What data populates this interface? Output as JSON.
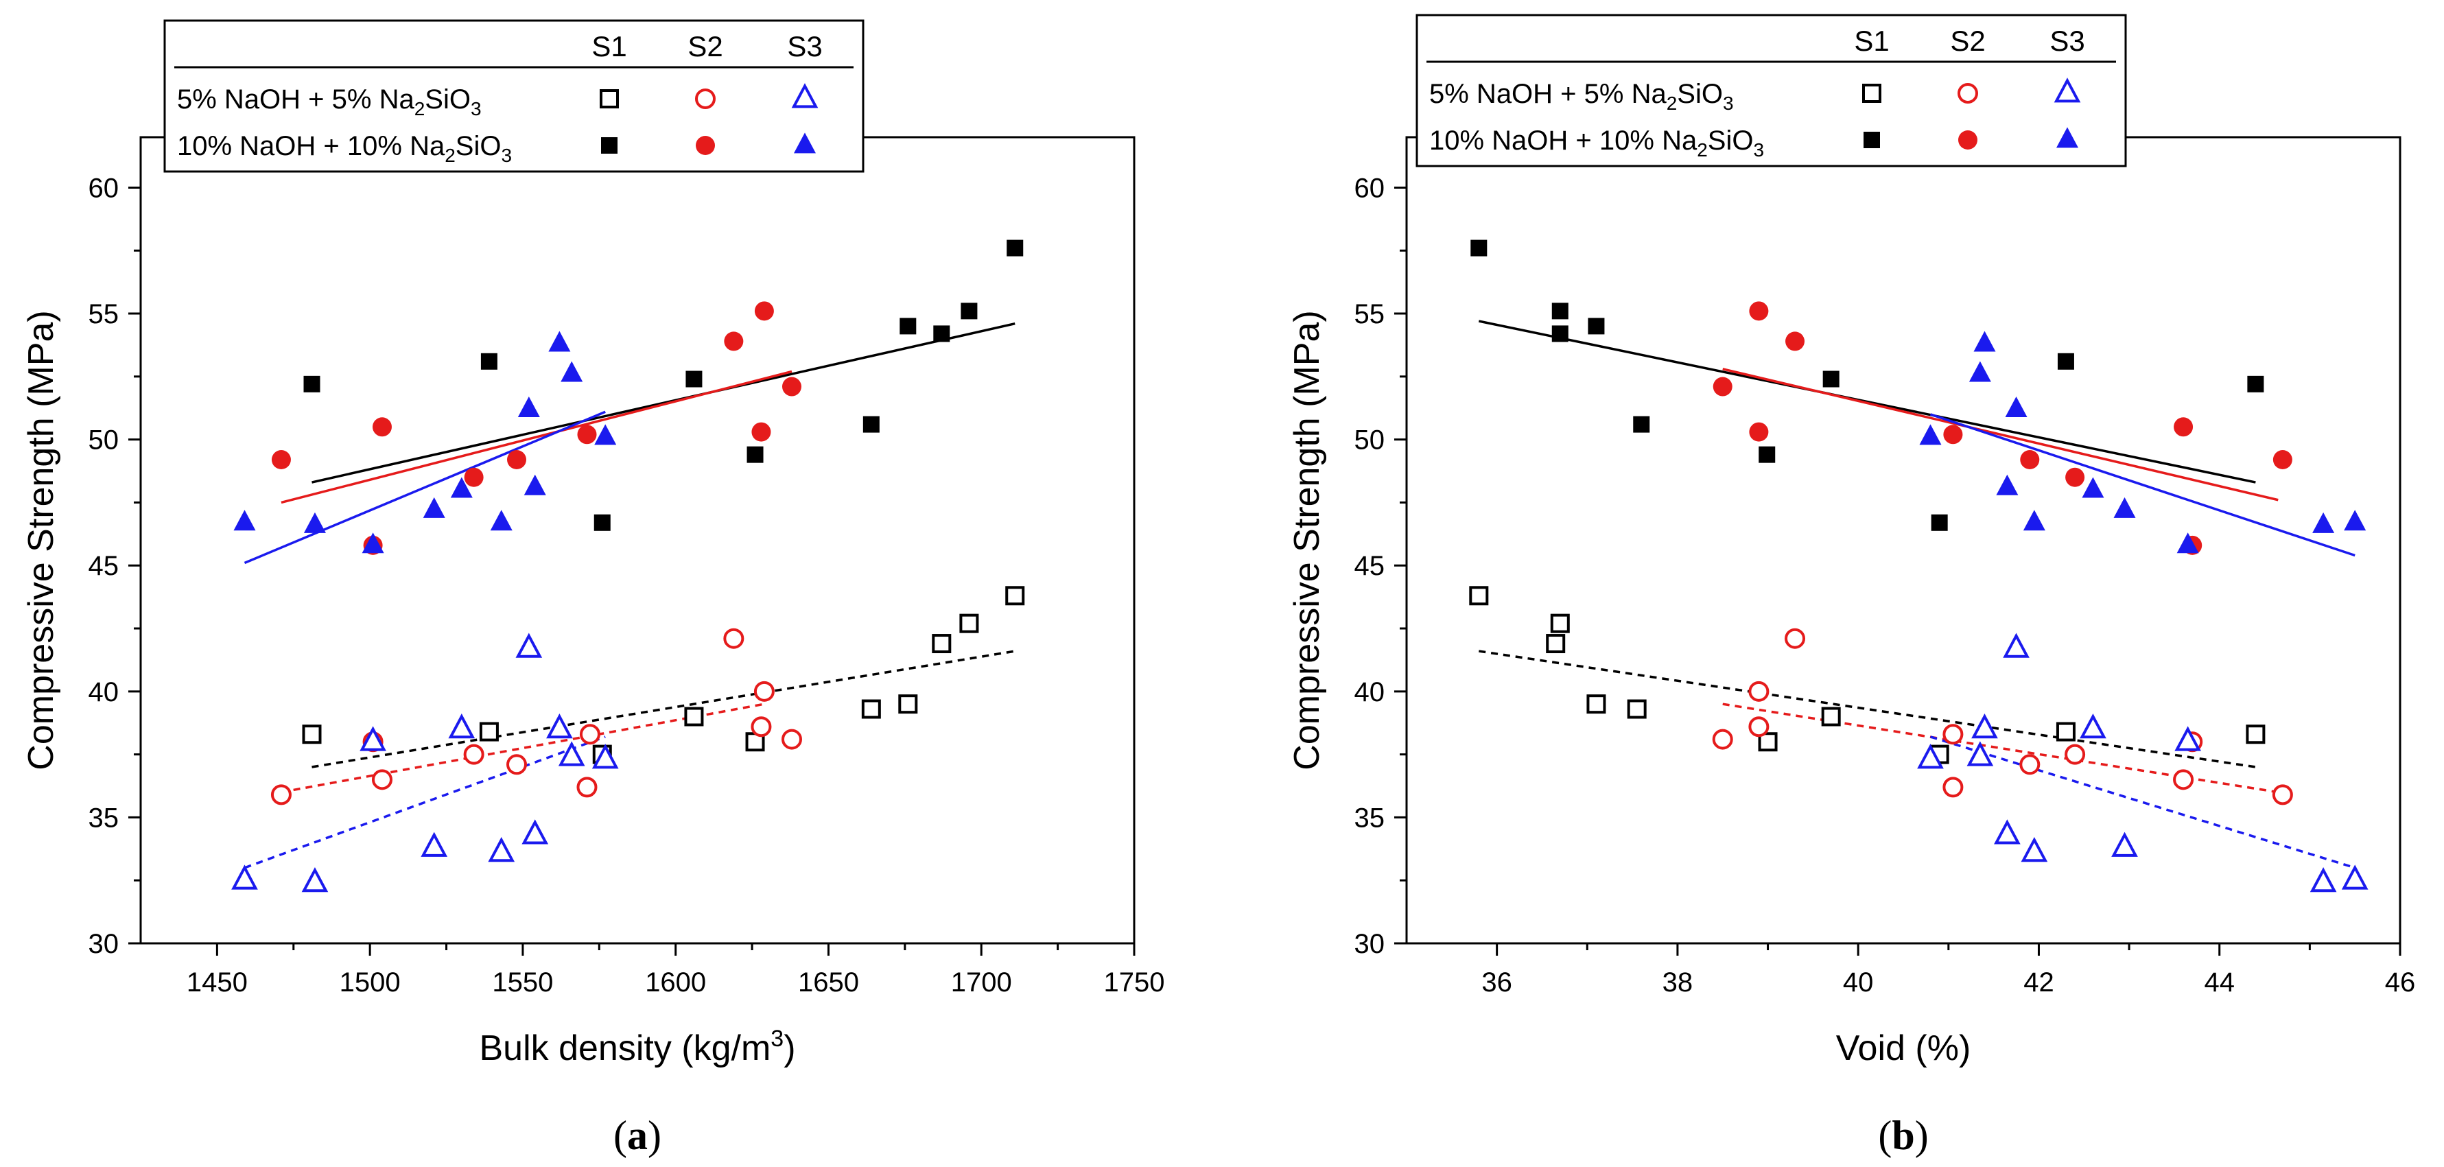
{
  "colors": {
    "S1": "#000000",
    "S2": "#e51b1b",
    "S3": "#1a1aee"
  },
  "legend": {
    "headers": [
      "S1",
      "S2",
      "S3"
    ],
    "rows": [
      {
        "label": "5% NaOH +  5% Na",
        "sub": "2",
        "label_tail": "SiO",
        "sub2": "3",
        "style": "open"
      },
      {
        "label": "10% NaOH + 10% Na",
        "sub": "2",
        "label_tail": "SiO",
        "sub2": "3",
        "style": "filled"
      }
    ]
  },
  "chart_data": [
    {
      "type": "scatter",
      "panel": "(a)",
      "panel_letter": "a",
      "xlabel": "Bulk density (kg/m",
      "xlabel_sup": "3",
      "xlabel_tail": ")",
      "ylabel": "Compressive Strength (MPa)",
      "xlim": [
        1425,
        1750
      ],
      "ylim": [
        30,
        62
      ],
      "xticks": [
        1450,
        1500,
        1550,
        1600,
        1650,
        1700,
        1750
      ],
      "yticks": [
        30,
        35,
        40,
        45,
        50,
        55,
        60
      ],
      "series": [
        {
          "name": "S1",
          "group": "10% NaOH + 10% Na2SiO3",
          "marker": "square",
          "filled": true,
          "x": [
            1481,
            1539,
            1576,
            1606,
            1626,
            1664,
            1676,
            1687,
            1696,
            1711
          ],
          "y": [
            52.2,
            53.1,
            46.7,
            52.4,
            49.4,
            50.6,
            54.5,
            54.2,
            55.1,
            57.6
          ],
          "fit": {
            "x": [
              1481,
              1711
            ],
            "y": [
              48.3,
              54.6
            ]
          }
        },
        {
          "name": "S2",
          "group": "10% NaOH + 10% Na2SiO3",
          "marker": "circle",
          "filled": true,
          "x": [
            1471,
            1501,
            1504,
            1534,
            1548,
            1571,
            1619,
            1628,
            1629,
            1638
          ],
          "y": [
            49.2,
            45.8,
            50.5,
            48.5,
            49.2,
            50.2,
            53.9,
            50.3,
            55.1,
            52.1
          ],
          "fit": {
            "x": [
              1471,
              1638
            ],
            "y": [
              47.5,
              52.7
            ]
          }
        },
        {
          "name": "S3",
          "group": "10% NaOH + 10% Na2SiO3",
          "marker": "triangle",
          "filled": true,
          "x": [
            1459,
            1482,
            1501,
            1521,
            1530,
            1543,
            1552,
            1554,
            1562,
            1566,
            1577
          ],
          "y": [
            46.7,
            46.6,
            45.8,
            47.2,
            48.0,
            46.7,
            51.2,
            48.1,
            53.8,
            52.6,
            50.1
          ],
          "fit": {
            "x": [
              1459,
              1577
            ],
            "y": [
              45.1,
              51.1
            ]
          }
        },
        {
          "name": "S1",
          "group": "5% NaOH + 5% Na2SiO3",
          "marker": "square",
          "filled": false,
          "x": [
            1481,
            1539,
            1576,
            1606,
            1626,
            1664,
            1676,
            1687,
            1696,
            1711
          ],
          "y": [
            38.3,
            38.4,
            37.5,
            39.0,
            38.0,
            39.3,
            39.5,
            41.9,
            42.7,
            43.8
          ],
          "fit": {
            "x": [
              1481,
              1711
            ],
            "y": [
              37.0,
              41.6
            ]
          },
          "fit_style": "dashed"
        },
        {
          "name": "S2",
          "group": "5% NaOH + 5% Na2SiO3",
          "marker": "circle",
          "filled": false,
          "x": [
            1471,
            1501,
            1504,
            1534,
            1548,
            1571,
            1572,
            1619,
            1628,
            1629,
            1638
          ],
          "y": [
            35.9,
            38.0,
            36.5,
            37.5,
            37.1,
            36.2,
            38.3,
            42.1,
            38.6,
            40.0,
            38.1
          ],
          "fit": {
            "x": [
              1471,
              1629
            ],
            "y": [
              36.0,
              39.5
            ]
          },
          "fit_style": "dashed"
        },
        {
          "name": "S3",
          "group": "5% NaOH + 5% Na2SiO3",
          "marker": "triangle",
          "filled": false,
          "x": [
            1459,
            1482,
            1501,
            1521,
            1530,
            1543,
            1552,
            1554,
            1562,
            1566,
            1577
          ],
          "y": [
            32.5,
            32.4,
            38.0,
            33.8,
            38.5,
            33.6,
            41.7,
            34.3,
            38.5,
            37.4,
            37.3
          ],
          "fit": {
            "x": [
              1459,
              1577
            ],
            "y": [
              33.0,
              38.2
            ]
          },
          "fit_style": "dashed"
        }
      ]
    },
    {
      "type": "scatter",
      "panel": "(b)",
      "panel_letter": "b",
      "xlabel": "Void (%)",
      "xlabel_sup": "",
      "xlabel_tail": "",
      "ylabel": "Compressive Strength (MPa)",
      "xlim": [
        35,
        46
      ],
      "ylim": [
        30,
        62
      ],
      "xticks": [
        36,
        38,
        40,
        42,
        44,
        46
      ],
      "yticks": [
        30,
        35,
        40,
        45,
        50,
        55,
        60
      ],
      "series": [
        {
          "name": "S1",
          "group": "10% NaOH + 10% Na2SiO3",
          "marker": "square",
          "filled": true,
          "x": [
            35.8,
            36.7,
            36.7,
            37.1,
            37.6,
            38.99,
            39.7,
            40.9,
            42.3,
            44.4
          ],
          "y": [
            57.6,
            55.1,
            54.2,
            54.5,
            50.6,
            49.4,
            52.4,
            46.7,
            53.1,
            52.2
          ],
          "fit": {
            "x": [
              35.8,
              44.4
            ],
            "y": [
              54.7,
              48.3
            ]
          }
        },
        {
          "name": "S2",
          "group": "10% NaOH + 10% Na2SiO3",
          "marker": "circle",
          "filled": true,
          "x": [
            38.5,
            38.9,
            38.9,
            39.3,
            41.05,
            41.9,
            42.4,
            43.6,
            43.7,
            44.7
          ],
          "y": [
            52.1,
            55.1,
            50.3,
            53.9,
            50.2,
            49.2,
            48.5,
            50.5,
            45.8,
            49.2
          ],
          "fit": {
            "x": [
              38.5,
              44.65
            ],
            "y": [
              52.8,
              47.6
            ]
          }
        },
        {
          "name": "S3",
          "group": "10% NaOH + 10% Na2SiO3",
          "marker": "triangle",
          "filled": true,
          "x": [
            40.8,
            41.35,
            41.4,
            41.65,
            41.75,
            41.95,
            42.6,
            42.95,
            43.65,
            45.15,
            45.5
          ],
          "y": [
            50.1,
            52.6,
            53.8,
            48.1,
            51.2,
            46.7,
            48.0,
            47.2,
            45.8,
            46.6,
            46.7
          ],
          "fit": {
            "x": [
              40.8,
              45.5
            ],
            "y": [
              51.0,
              45.4
            ]
          }
        },
        {
          "name": "S1",
          "group": "5% NaOH + 5% Na2SiO3",
          "marker": "square",
          "filled": false,
          "x": [
            35.8,
            36.65,
            36.7,
            37.1,
            37.55,
            39.0,
            39.7,
            40.9,
            42.3,
            44.4
          ],
          "y": [
            43.8,
            41.9,
            42.7,
            39.5,
            39.3,
            38.0,
            39.0,
            37.5,
            38.4,
            38.3
          ],
          "fit": {
            "x": [
              35.8,
              44.4
            ],
            "y": [
              41.6,
              37.0
            ]
          },
          "fit_style": "dashed"
        },
        {
          "name": "S2",
          "group": "5% NaOH + 5% Na2SiO3",
          "marker": "circle",
          "filled": false,
          "x": [
            38.5,
            38.9,
            38.9,
            39.3,
            41.05,
            41.05,
            41.9,
            42.4,
            43.6,
            43.7,
            44.7
          ],
          "y": [
            38.1,
            40.0,
            38.6,
            42.1,
            38.3,
            36.2,
            37.1,
            37.5,
            36.5,
            38.0,
            35.9
          ],
          "fit": {
            "x": [
              38.5,
              44.65
            ],
            "y": [
              39.5,
              36.0
            ]
          },
          "fit_style": "dashed"
        },
        {
          "name": "S3",
          "group": "5% NaOH + 5% Na2SiO3",
          "marker": "triangle",
          "filled": false,
          "x": [
            40.8,
            41.35,
            41.4,
            41.65,
            41.75,
            41.95,
            42.6,
            42.95,
            43.65,
            45.15,
            45.5
          ],
          "y": [
            37.3,
            37.4,
            38.5,
            34.3,
            41.7,
            33.6,
            38.5,
            33.8,
            38.0,
            32.4,
            32.5
          ],
          "fit": {
            "x": [
              40.8,
              45.5
            ],
            "y": [
              38.2,
              33.0
            ]
          },
          "fit_style": "dashed"
        }
      ]
    }
  ]
}
